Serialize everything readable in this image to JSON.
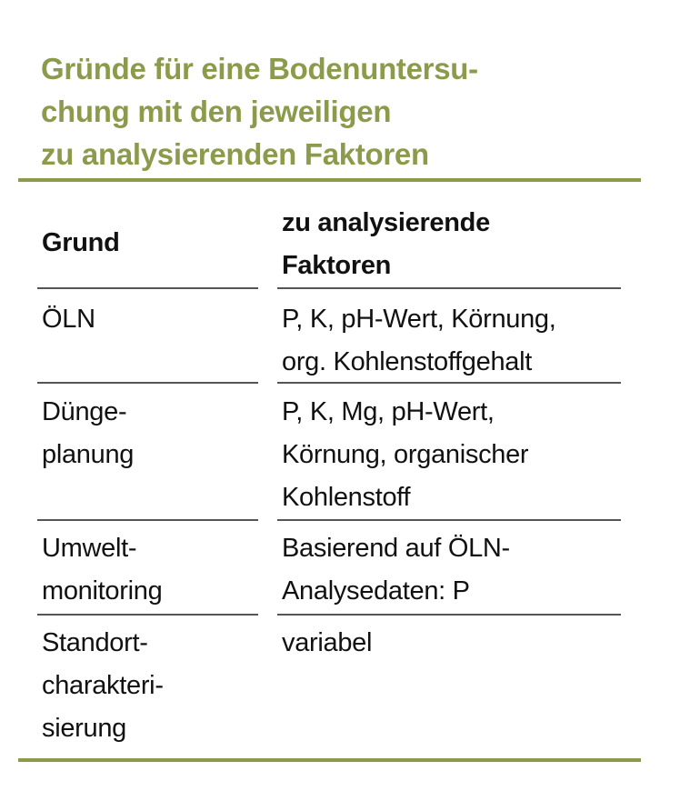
{
  "title_lines": [
    "Gründe für eine Bodenuntersu-",
    "chung mit den jeweiligen",
    "zu analysierenden Faktoren"
  ],
  "accent_color": "#8b9b4b",
  "table": {
    "headers": [
      [
        "Grund"
      ],
      [
        "zu analysierende",
        "Faktoren"
      ]
    ],
    "rows": [
      {
        "grund": [
          "ÖLN"
        ],
        "faktoren": [
          "P, K, pH-Wert, Körnung,",
          "org. Kohlenstoffgehalt"
        ]
      },
      {
        "grund": [
          "Dünge-",
          "planung"
        ],
        "faktoren": [
          "P, K, Mg, pH-Wert,",
          "Körnung, organischer",
          "Kohlenstoff"
        ]
      },
      {
        "grund": [
          "Umwelt-",
          "monitoring"
        ],
        "faktoren": [
          "Basierend auf ÖLN-",
          "Analysedaten: P"
        ]
      },
      {
        "grund": [
          "Standort-",
          "charakteri-",
          "sierung"
        ],
        "faktoren": [
          "variabel"
        ]
      }
    ]
  }
}
